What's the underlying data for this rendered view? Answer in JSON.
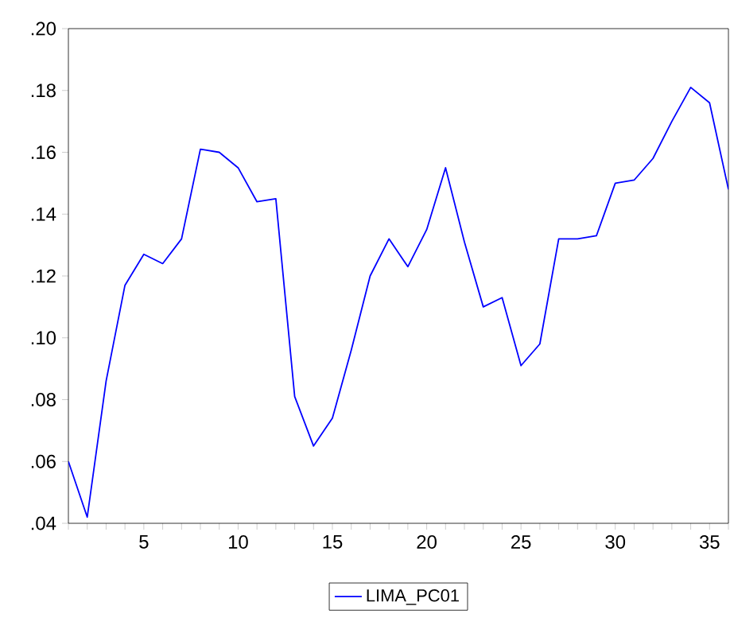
{
  "chart_data": {
    "type": "line",
    "x": [
      1,
      2,
      3,
      4,
      5,
      6,
      7,
      8,
      9,
      10,
      11,
      12,
      13,
      14,
      15,
      16,
      17,
      18,
      19,
      20,
      21,
      22,
      23,
      24,
      25,
      26,
      27,
      28,
      29,
      30,
      31,
      32,
      33,
      34,
      35,
      36
    ],
    "series": [
      {
        "name": "LIMA_PC01",
        "color": "#0000ff",
        "values": [
          0.06,
          0.042,
          0.086,
          0.117,
          0.127,
          0.124,
          0.132,
          0.161,
          0.16,
          0.155,
          0.144,
          0.145,
          0.081,
          0.065,
          0.074,
          0.096,
          0.12,
          0.132,
          0.123,
          0.135,
          0.155,
          0.131,
          0.11,
          0.113,
          0.091,
          0.098,
          0.132,
          0.132,
          0.133,
          0.15,
          0.151,
          0.158,
          0.17,
          0.181,
          0.176,
          0.148
        ]
      }
    ],
    "xlim": [
      1,
      36
    ],
    "xticks": [
      {
        "value": 1,
        "label": null
      },
      {
        "value": 2,
        "label": null
      },
      {
        "value": 3,
        "label": null
      },
      {
        "value": 4,
        "label": null
      },
      5,
      {
        "value": 6,
        "label": null
      },
      {
        "value": 7,
        "label": null
      },
      {
        "value": 8,
        "label": null
      },
      {
        "value": 9,
        "label": null
      },
      10,
      {
        "value": 11,
        "label": null
      },
      {
        "value": 12,
        "label": null
      },
      {
        "value": 13,
        "label": null
      },
      {
        "value": 14,
        "label": null
      },
      15,
      {
        "value": 16,
        "label": null
      },
      {
        "value": 17,
        "label": null
      },
      {
        "value": 18,
        "label": null
      },
      {
        "value": 19,
        "label": null
      },
      20,
      {
        "value": 21,
        "label": null
      },
      {
        "value": 22,
        "label": null
      },
      {
        "value": 23,
        "label": null
      },
      {
        "value": 24,
        "label": null
      },
      25,
      {
        "value": 26,
        "label": null
      },
      {
        "value": 27,
        "label": null
      },
      {
        "value": 28,
        "label": null
      },
      {
        "value": 29,
        "label": null
      },
      30,
      {
        "value": 31,
        "label": null
      },
      {
        "value": 32,
        "label": null
      },
      {
        "value": 33,
        "label": null
      },
      {
        "value": 34,
        "label": null
      },
      35,
      {
        "value": 36,
        "label": null
      }
    ],
    "ylim": [
      0.04,
      0.2
    ],
    "yticks": [
      {
        "value": 0.04,
        "label": ".04"
      },
      {
        "value": 0.06,
        "label": ".06"
      },
      {
        "value": 0.08,
        "label": ".08"
      },
      {
        "value": 0.1,
        "label": ".10"
      },
      {
        "value": 0.12,
        "label": ".12"
      },
      {
        "value": 0.14,
        "label": ".14"
      },
      {
        "value": 0.16,
        "label": ".16"
      },
      {
        "value": 0.18,
        "label": ".18"
      },
      {
        "value": 0.2,
        "label": ".20"
      }
    ],
    "legend": "bottom",
    "grid": false,
    "line_style": "solid",
    "marker": "none"
  }
}
